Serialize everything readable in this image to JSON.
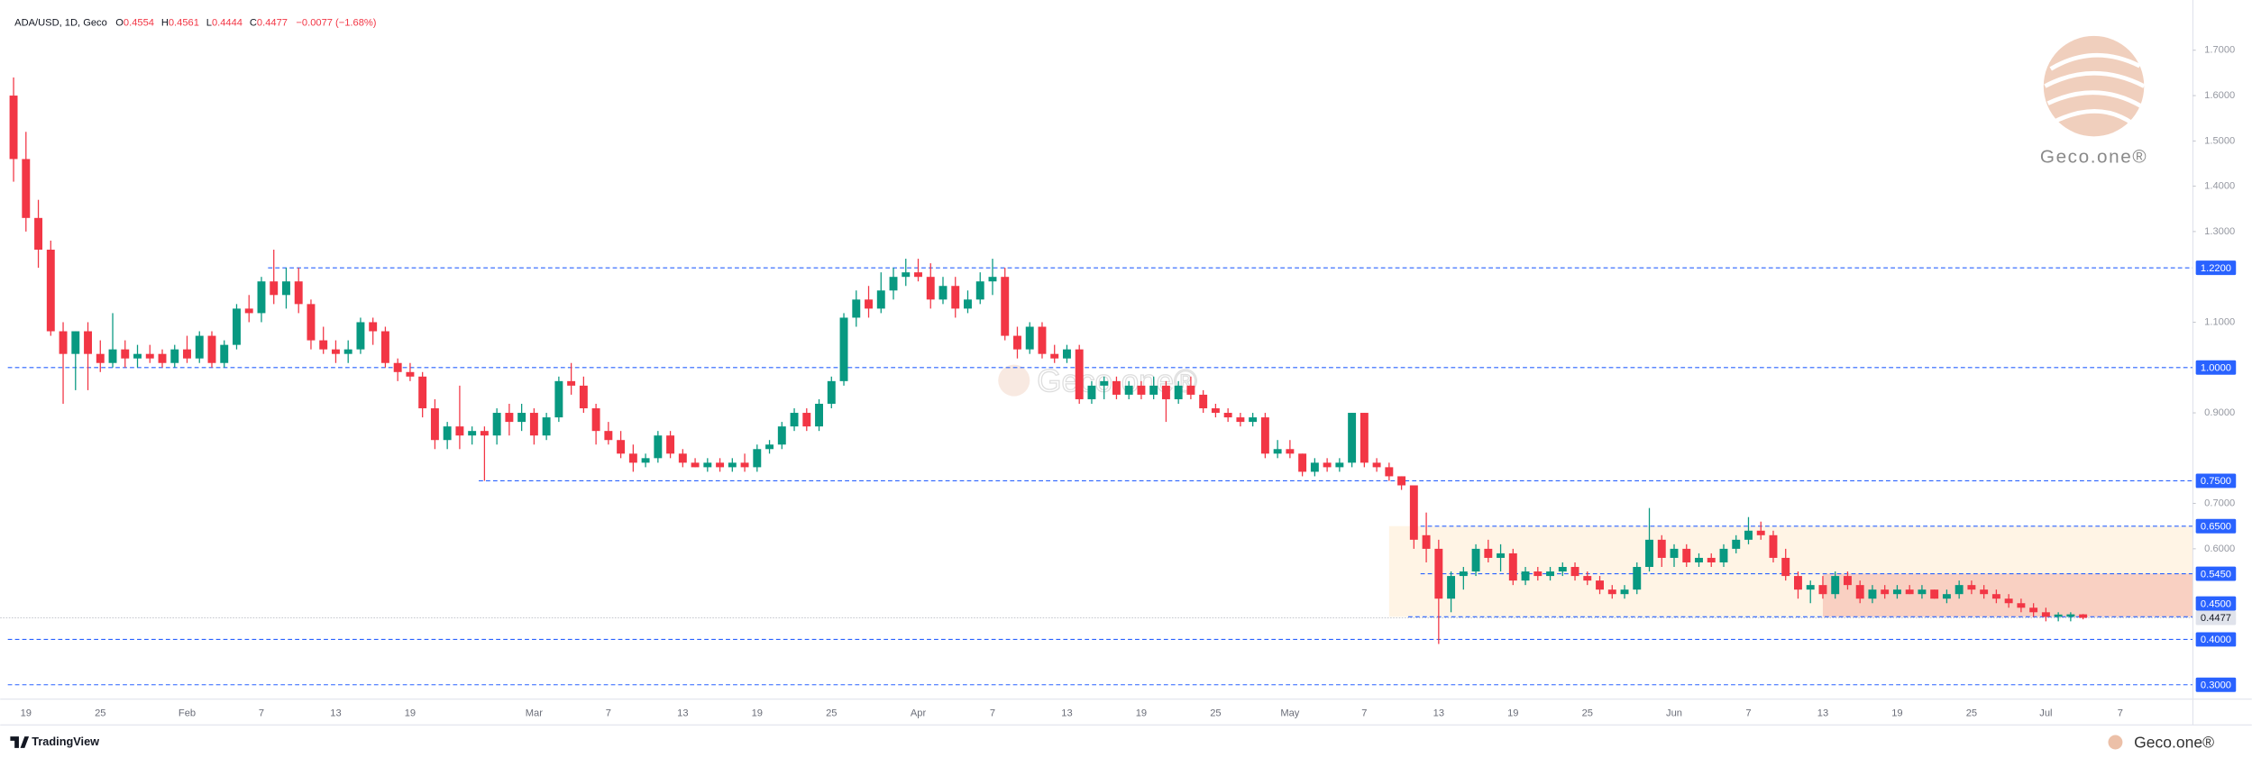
{
  "chart_data": {
    "type": "candlestick",
    "header": {
      "symbol": "ADA/USD, 1D, Geco",
      "o_key": "O",
      "o": "0.4554",
      "h_key": "H",
      "h": "0.4561",
      "l_key": "L",
      "l": "0.4444",
      "c_key": "C",
      "c": "0.4477",
      "change": "−0.0077 (−1.68%)"
    },
    "categories": [
      null,
      "19",
      null,
      null,
      null,
      null,
      null,
      "25",
      null,
      null,
      null,
      null,
      null,
      null,
      "Feb",
      null,
      null,
      null,
      null,
      null,
      "7",
      null,
      null,
      null,
      null,
      null,
      "13",
      null,
      null,
      null,
      null,
      null,
      "19",
      null,
      null,
      null,
      null,
      null,
      null,
      null,
      null,
      null,
      "Mar",
      null,
      null,
      null,
      null,
      null,
      "7",
      null,
      null,
      null,
      null,
      null,
      "13",
      null,
      null,
      null,
      null,
      null,
      "19",
      null,
      null,
      null,
      null,
      null,
      "25",
      null,
      null,
      null,
      null,
      null,
      null,
      "Apr",
      null,
      null,
      null,
      null,
      null,
      "7",
      null,
      null,
      null,
      null,
      null,
      "13",
      null,
      null,
      null,
      null,
      null,
      "19",
      null,
      null,
      null,
      null,
      null,
      "25",
      null,
      null,
      null,
      null,
      null,
      "May",
      null,
      null,
      null,
      null,
      null,
      "7",
      null,
      null,
      null,
      null,
      null,
      "13",
      null,
      null,
      null,
      null,
      null,
      "19",
      null,
      null,
      null,
      null,
      null,
      "25",
      null,
      null,
      null,
      null,
      null,
      null,
      "Jun",
      null,
      null,
      null,
      null,
      null,
      "7",
      null,
      null,
      null,
      null,
      null,
      "13",
      null,
      null,
      null,
      null,
      null,
      "19",
      null,
      null,
      null,
      null,
      null,
      "25",
      null,
      null,
      null,
      null,
      null,
      "Jul",
      null,
      null,
      null,
      null,
      null,
      "7",
      null,
      null,
      null,
      null,
      null
    ],
    "open": [
      1.6,
      1.46,
      1.33,
      1.26,
      1.08,
      1.03,
      1.08,
      1.03,
      1.01,
      1.04,
      1.02,
      1.03,
      1.03,
      1.01,
      1.04,
      1.02,
      1.07,
      1.01,
      1.05,
      1.13,
      1.12,
      1.19,
      1.16,
      1.19,
      1.14,
      1.06,
      1.04,
      1.03,
      1.04,
      1.1,
      1.08,
      1.01,
      0.99,
      0.98,
      0.91,
      0.84,
      0.87,
      0.85,
      0.86,
      0.85,
      0.9,
      0.88,
      0.9,
      0.85,
      0.89,
      0.97,
      0.96,
      0.91,
      0.86,
      0.84,
      0.81,
      0.79,
      0.8,
      0.85,
      0.81,
      0.79,
      0.78,
      0.79,
      0.78,
      0.79,
      0.78,
      0.82,
      0.83,
      0.87,
      0.9,
      0.87,
      0.92,
      0.97,
      1.11,
      1.15,
      1.13,
      1.17,
      1.2,
      1.21,
      1.2,
      1.15,
      1.18,
      1.13,
      1.15,
      1.19,
      1.2,
      1.07,
      1.04,
      1.09,
      1.03,
      1.02,
      1.04,
      0.93,
      0.96,
      0.97,
      0.94,
      0.96,
      0.94,
      0.96,
      0.93,
      0.96,
      0.94,
      0.91,
      0.9,
      0.89,
      0.88,
      0.89,
      0.81,
      0.82,
      0.81,
      0.77,
      0.79,
      0.78,
      0.79,
      0.9,
      0.79,
      0.78,
      0.76,
      0.74,
      0.63,
      0.6,
      0.49,
      0.54,
      0.55,
      0.6,
      0.58,
      0.59,
      0.53,
      0.55,
      0.54,
      0.55,
      0.56,
      0.54,
      0.53,
      0.51,
      0.5,
      0.51,
      0.56,
      0.62,
      0.58,
      0.6,
      0.57,
      0.58,
      0.57,
      0.6,
      0.62,
      0.64,
      0.63,
      0.58,
      0.54,
      0.51,
      0.52,
      0.5,
      0.54,
      0.52,
      0.49,
      0.51,
      0.5,
      0.51,
      0.5,
      0.51,
      0.49,
      0.5,
      0.52,
      0.51,
      0.5,
      0.49,
      0.48,
      0.47,
      0.46,
      0.45,
      0.45,
      0.4554,
      null,
      null,
      null,
      null,
      null,
      null,
      null,
      null
    ],
    "high": [
      1.64,
      1.52,
      1.37,
      1.28,
      1.1,
      1.08,
      1.1,
      1.06,
      1.12,
      1.06,
      1.05,
      1.05,
      1.04,
      1.05,
      1.07,
      1.08,
      1.08,
      1.06,
      1.14,
      1.16,
      1.2,
      1.26,
      1.22,
      1.22,
      1.15,
      1.09,
      1.06,
      1.06,
      1.11,
      1.11,
      1.09,
      1.02,
      1.01,
      0.99,
      0.93,
      0.88,
      0.96,
      0.87,
      0.87,
      0.91,
      0.92,
      0.92,
      0.91,
      0.9,
      0.98,
      1.01,
      0.98,
      0.92,
      0.88,
      0.86,
      0.83,
      0.81,
      0.86,
      0.86,
      0.82,
      0.8,
      0.8,
      0.8,
      0.8,
      0.81,
      0.83,
      0.84,
      0.88,
      0.91,
      0.91,
      0.93,
      0.98,
      1.12,
      1.17,
      1.18,
      1.21,
      1.22,
      1.24,
      1.24,
      1.23,
      1.2,
      1.2,
      1.17,
      1.21,
      1.24,
      1.22,
      1.09,
      1.1,
      1.1,
      1.05,
      1.05,
      1.05,
      0.97,
      0.98,
      0.98,
      0.97,
      0.97,
      0.98,
      0.97,
      0.97,
      0.98,
      0.95,
      0.92,
      0.91,
      0.9,
      0.9,
      0.9,
      0.84,
      0.84,
      0.81,
      0.8,
      0.8,
      0.8,
      0.9,
      0.9,
      0.8,
      0.79,
      0.76,
      0.74,
      0.68,
      0.62,
      0.55,
      0.56,
      0.61,
      0.62,
      0.61,
      0.6,
      0.56,
      0.56,
      0.56,
      0.57,
      0.57,
      0.55,
      0.54,
      0.52,
      0.52,
      0.57,
      0.69,
      0.63,
      0.61,
      0.61,
      0.59,
      0.59,
      0.61,
      0.63,
      0.67,
      0.66,
      0.64,
      0.6,
      0.55,
      0.53,
      0.54,
      0.55,
      0.55,
      0.53,
      0.52,
      0.52,
      0.52,
      0.52,
      0.52,
      0.51,
      0.51,
      0.53,
      0.53,
      0.52,
      0.51,
      0.5,
      0.49,
      0.48,
      0.47,
      0.46,
      0.46,
      0.4561,
      null,
      null,
      null,
      null,
      null,
      null,
      null,
      null
    ],
    "low": [
      1.41,
      1.3,
      1.22,
      1.07,
      0.92,
      0.95,
      0.95,
      0.99,
      1.0,
      1.0,
      1.0,
      1.01,
      1.0,
      1.0,
      1.01,
      1.01,
      1.0,
      1.0,
      1.04,
      1.1,
      1.1,
      1.14,
      1.13,
      1.12,
      1.04,
      1.03,
      1.01,
      1.01,
      1.03,
      1.05,
      1.0,
      0.97,
      0.97,
      0.89,
      0.82,
      0.82,
      0.82,
      0.83,
      0.75,
      0.83,
      0.85,
      0.86,
      0.83,
      0.84,
      0.88,
      0.94,
      0.9,
      0.83,
      0.83,
      0.8,
      0.77,
      0.78,
      0.79,
      0.8,
      0.78,
      0.78,
      0.77,
      0.77,
      0.77,
      0.77,
      0.77,
      0.81,
      0.82,
      0.86,
      0.86,
      0.86,
      0.91,
      0.96,
      1.09,
      1.11,
      1.12,
      1.15,
      1.18,
      1.19,
      1.13,
      1.14,
      1.11,
      1.12,
      1.14,
      1.16,
      1.06,
      1.02,
      1.03,
      1.02,
      1.01,
      1.01,
      0.92,
      0.92,
      0.93,
      0.93,
      0.93,
      0.93,
      0.93,
      0.88,
      0.92,
      0.93,
      0.9,
      0.89,
      0.88,
      0.87,
      0.87,
      0.8,
      0.8,
      0.8,
      0.76,
      0.76,
      0.77,
      0.77,
      0.78,
      0.78,
      0.77,
      0.75,
      0.73,
      0.6,
      0.57,
      0.39,
      0.46,
      0.51,
      0.54,
      0.57,
      0.55,
      0.52,
      0.52,
      0.53,
      0.53,
      0.54,
      0.53,
      0.52,
      0.5,
      0.49,
      0.49,
      0.5,
      0.55,
      0.56,
      0.56,
      0.56,
      0.56,
      0.56,
      0.56,
      0.59,
      0.61,
      0.62,
      0.57,
      0.53,
      0.49,
      0.48,
      0.49,
      0.49,
      0.51,
      0.48,
      0.48,
      0.49,
      0.49,
      0.5,
      0.49,
      0.49,
      0.48,
      0.49,
      0.5,
      0.49,
      0.48,
      0.47,
      0.46,
      0.45,
      0.44,
      0.44,
      0.44,
      0.4444,
      null,
      null,
      null,
      null,
      null,
      null,
      null,
      null
    ],
    "close": [
      1.46,
      1.33,
      1.26,
      1.08,
      1.03,
      1.08,
      1.03,
      1.01,
      1.04,
      1.02,
      1.03,
      1.02,
      1.01,
      1.04,
      1.02,
      1.07,
      1.01,
      1.05,
      1.13,
      1.12,
      1.19,
      1.16,
      1.19,
      1.14,
      1.06,
      1.04,
      1.03,
      1.04,
      1.1,
      1.08,
      1.01,
      0.99,
      0.98,
      0.91,
      0.84,
      0.87,
      0.85,
      0.86,
      0.85,
      0.9,
      0.88,
      0.9,
      0.85,
      0.89,
      0.97,
      0.96,
      0.91,
      0.86,
      0.84,
      0.81,
      0.79,
      0.8,
      0.85,
      0.81,
      0.79,
      0.78,
      0.79,
      0.78,
      0.79,
      0.78,
      0.82,
      0.83,
      0.87,
      0.9,
      0.87,
      0.92,
      0.97,
      1.11,
      1.15,
      1.13,
      1.17,
      1.2,
      1.21,
      1.2,
      1.15,
      1.18,
      1.13,
      1.15,
      1.19,
      1.2,
      1.07,
      1.04,
      1.09,
      1.03,
      1.02,
      1.04,
      0.93,
      0.96,
      0.97,
      0.94,
      0.96,
      0.94,
      0.96,
      0.93,
      0.96,
      0.94,
      0.91,
      0.9,
      0.89,
      0.88,
      0.89,
      0.81,
      0.82,
      0.81,
      0.77,
      0.79,
      0.78,
      0.79,
      0.9,
      0.79,
      0.78,
      0.76,
      0.74,
      0.62,
      0.6,
      0.49,
      0.54,
      0.55,
      0.6,
      0.58,
      0.59,
      0.53,
      0.55,
      0.54,
      0.55,
      0.56,
      0.54,
      0.53,
      0.51,
      0.5,
      0.51,
      0.56,
      0.62,
      0.58,
      0.6,
      0.57,
      0.58,
      0.57,
      0.6,
      0.62,
      0.64,
      0.63,
      0.58,
      0.54,
      0.51,
      0.52,
      0.5,
      0.54,
      0.52,
      0.49,
      0.51,
      0.5,
      0.51,
      0.5,
      0.51,
      0.49,
      0.5,
      0.52,
      0.51,
      0.5,
      0.49,
      0.48,
      0.47,
      0.46,
      0.45,
      0.455,
      0.4554,
      0.4477,
      null,
      null,
      null,
      null,
      null,
      null,
      null,
      null
    ],
    "up_color": "#089981",
    "down_color": "#f23645",
    "ylim": [
      0.2683,
      1.8109
    ],
    "yticks": [
      {
        "value": 1.7,
        "label": "1.7000"
      },
      {
        "value": 1.6,
        "label": "1.6000"
      },
      {
        "value": 1.5,
        "label": "1.5000"
      },
      {
        "value": 1.4,
        "label": "1.4000"
      },
      {
        "value": 1.3,
        "label": "1.3000"
      },
      {
        "value": 1.1,
        "label": "1.1000"
      },
      {
        "value": 0.9,
        "label": "0.9000"
      },
      {
        "value": 0.7,
        "label": "0.7000"
      },
      {
        "value": 0.6,
        "label": "0.6000"
      }
    ],
    "grid": false,
    "levels": [
      {
        "value": 1.22,
        "label": "1.2200"
      },
      {
        "value": 1.0,
        "label": "1.0000"
      },
      {
        "value": 0.75,
        "label": "0.7500"
      },
      {
        "value": 0.65,
        "label": "0.6500"
      },
      {
        "value": 0.545,
        "label": "0.5450"
      },
      {
        "value": 0.45,
        "label": "0.4500"
      },
      {
        "value": 0.4,
        "label": "0.4000"
      },
      {
        "value": 0.3,
        "label": "0.3000"
      }
    ],
    "level_color": "#2962ff",
    "current_price": {
      "value": 0.4477,
      "label": "0.4477"
    },
    "zones": [
      {
        "top": 0.65,
        "bottom": 0.45,
        "color": "#fff0dc"
      },
      {
        "top": 0.545,
        "bottom": 0.45,
        "color": "#f7c4b5"
      }
    ],
    "watermark": "Geco.one®",
    "brand": "TradingView"
  }
}
